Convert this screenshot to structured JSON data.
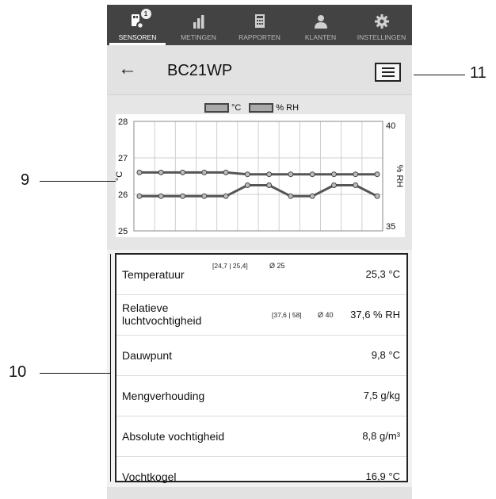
{
  "nav": {
    "items": [
      {
        "label": "SENSOREN",
        "icon": "sensor-icon",
        "active": true,
        "badge": "1"
      },
      {
        "label": "METINGEN",
        "icon": "bar-chart-icon",
        "active": false
      },
      {
        "label": "RAPPORTEN",
        "icon": "report-icon",
        "active": false
      },
      {
        "label": "KLANTEN",
        "icon": "customer-icon",
        "active": false
      },
      {
        "label": "INSTELLINGEN",
        "icon": "gear-icon",
        "active": false
      }
    ]
  },
  "header": {
    "back_icon": "arrow-left-icon",
    "title": "BC21WP",
    "menu_icon": "hamburger-menu-icon"
  },
  "chart_data": {
    "type": "line",
    "legend": [
      "°C",
      "% RH"
    ],
    "x": [
      0,
      1,
      2,
      3,
      4,
      5,
      6,
      7,
      8,
      9,
      10,
      11
    ],
    "series": [
      {
        "name": "°C",
        "axis": "left",
        "values": [
          26.6,
          26.6,
          26.6,
          26.6,
          26.6,
          26.55,
          26.55,
          26.55,
          26.55,
          26.55,
          26.55,
          26.55
        ]
      },
      {
        "name": "% RH",
        "axis": "left",
        "values": [
          25.95,
          25.95,
          25.95,
          25.95,
          25.95,
          26.25,
          26.25,
          25.95,
          25.95,
          26.25,
          26.25,
          25.95
        ]
      }
    ],
    "ylim": [
      25,
      28
    ],
    "yticks": [
      25,
      26,
      27,
      28
    ],
    "y2lim": [
      35,
      40
    ],
    "y2ticks": [
      35,
      40
    ],
    "ylabel": "°C",
    "y2label": "% RH",
    "grid": true
  },
  "measurements": [
    {
      "name": "Temperatuur",
      "range": "[24,7 | 25,4]",
      "avg": "Ø 25",
      "value": "25,3 °C"
    },
    {
      "name_line1": "Relatieve",
      "name_line2": "luchtvochtigheid",
      "range": "[37,6 | 58]",
      "avg": "Ø 40",
      "value": "37,6 % RH"
    },
    {
      "name": "Dauwpunt",
      "value": "9,8 °C"
    },
    {
      "name": "Mengverhouding",
      "value": "7,5 g/kg"
    },
    {
      "name": "Absolute vochtigheid",
      "value": "8,8 g/m³"
    },
    {
      "name": "Vochtkogel",
      "value": "16,9 °C"
    }
  ],
  "callouts": {
    "chart": "9",
    "panel": "10",
    "menu": "11"
  },
  "colors": {
    "nav_bg": "#434343",
    "header_bg": "#e2e2e2",
    "line": "#555555",
    "marker_fill": "#bdbdbd"
  }
}
